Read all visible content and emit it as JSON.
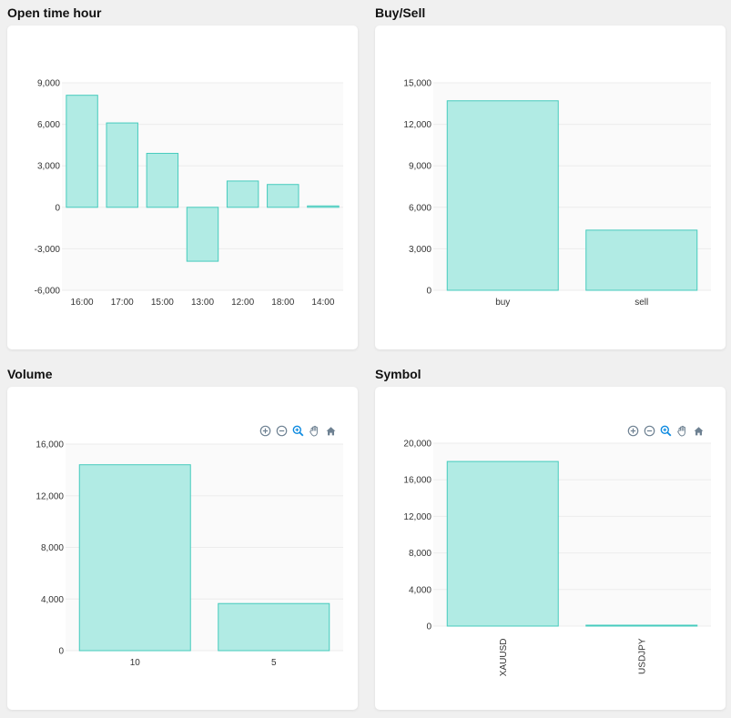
{
  "colors": {
    "bar_fill": "#b1ebe4",
    "bar_stroke": "#46cbbd",
    "plot_bg": "#fafafa",
    "grid": "#ececec",
    "icon": "#6e8192",
    "icon_active": "#0d8ae0"
  },
  "toolbar": {
    "icons": [
      "zoom-in-icon",
      "zoom-out-icon",
      "selection-zoom-icon",
      "pan-hand-icon",
      "reset-home-icon"
    ]
  },
  "chart_data": [
    {
      "id": "open_time",
      "title": "Open time hour",
      "type": "bar",
      "categories": [
        "16:00",
        "17:00",
        "15:00",
        "13:00",
        "12:00",
        "18:00",
        "14:00"
      ],
      "values": [
        8100,
        6100,
        3900,
        -3900,
        1900,
        1650,
        100
      ],
      "ylim": [
        -6000,
        9000
      ],
      "yticks": [
        9000,
        6000,
        3000,
        0,
        -3000,
        -6000
      ],
      "ytick_labels": [
        "9,000",
        "6,000",
        "3,000",
        "0",
        "-3,000",
        "-6,000"
      ],
      "grid": true,
      "toolbar": false
    },
    {
      "id": "buy_sell",
      "title": "Buy/Sell",
      "type": "bar",
      "categories": [
        "buy",
        "sell"
      ],
      "values": [
        13700,
        4350
      ],
      "ylim": [
        0,
        15000
      ],
      "yticks": [
        15000,
        12000,
        9000,
        6000,
        3000,
        0
      ],
      "ytick_labels": [
        "15,000",
        "12,000",
        "9,000",
        "6,000",
        "3,000",
        "0"
      ],
      "grid": true,
      "toolbar": false
    },
    {
      "id": "volume",
      "title": "Volume",
      "type": "bar",
      "categories": [
        "10",
        "5"
      ],
      "values": [
        14400,
        3650
      ],
      "ylim": [
        0,
        16000
      ],
      "yticks": [
        16000,
        12000,
        8000,
        4000,
        0
      ],
      "ytick_labels": [
        "16,000",
        "12,000",
        "8,000",
        "4,000",
        "0"
      ],
      "grid": true,
      "toolbar": true
    },
    {
      "id": "symbol",
      "title": "Symbol",
      "type": "bar",
      "categories": [
        "XAUUSD",
        "USDJPY"
      ],
      "values": [
        18000,
        100
      ],
      "ylim": [
        0,
        20000
      ],
      "yticks": [
        20000,
        16000,
        12000,
        8000,
        4000,
        0
      ],
      "ytick_labels": [
        "20,000",
        "16,000",
        "12,000",
        "8,000",
        "4,000",
        "0"
      ],
      "grid": true,
      "toolbar": true,
      "rotate_x_labels": true
    }
  ]
}
